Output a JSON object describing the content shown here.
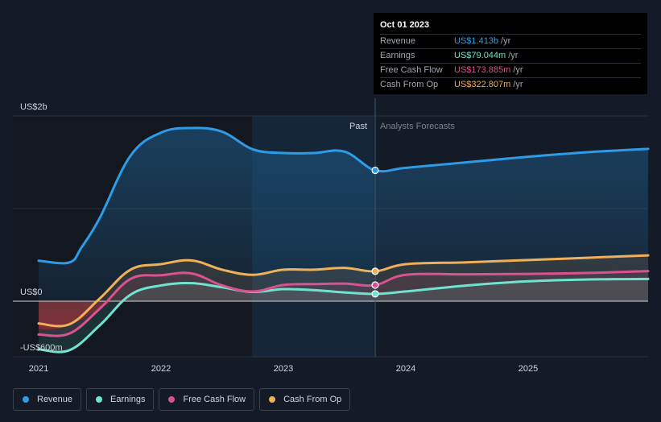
{
  "tooltip": {
    "date": "Oct 01 2023",
    "rows": [
      {
        "label": "Revenue",
        "value": "US$1.413b",
        "unit": "/yr",
        "color": "#2e9be6"
      },
      {
        "label": "Earnings",
        "value": "US$79.044m",
        "unit": "/yr",
        "color": "#6fe3cf"
      },
      {
        "label": "Free Cash Flow",
        "value": "US$173.885m",
        "unit": "/yr",
        "color": "#d9528f"
      },
      {
        "label": "Cash From Op",
        "value": "US$322.807m",
        "unit": "/yr",
        "color": "#f0b05a"
      }
    ]
  },
  "legend": [
    {
      "label": "Revenue",
      "color": "#2e9be6"
    },
    {
      "label": "Earnings",
      "color": "#6fe3cf"
    },
    {
      "label": "Free Cash Flow",
      "color": "#d9528f"
    },
    {
      "label": "Cash From Op",
      "color": "#f0b05a"
    }
  ],
  "chart_data": {
    "type": "area",
    "y_tick_labels": [
      "US$2b",
      "US$0",
      "-US$600m"
    ],
    "x_tick_labels": [
      "2021",
      "2022",
      "2023",
      "2024",
      "2025"
    ],
    "past_label": "Past",
    "forecast_label": "Analysts Forecasts",
    "ylim": [
      -600,
      2000
    ],
    "xlim": [
      2021.0,
      2025.98
    ],
    "divider_x": 2023.75,
    "series": [
      {
        "name": "Revenue",
        "color": "#2e9be6",
        "x": [
          2021.0,
          2021.25,
          2021.35,
          2021.5,
          2021.75,
          2022.0,
          2022.25,
          2022.5,
          2022.75,
          2023.0,
          2023.25,
          2023.5,
          2023.75,
          2024.0,
          2024.5,
          2025.0,
          2025.5,
          2025.98
        ],
        "y": [
          437,
          418,
          580,
          900,
          1570,
          1820,
          1870,
          1830,
          1640,
          1600,
          1600,
          1615,
          1413,
          1440,
          1500,
          1560,
          1610,
          1645
        ]
      },
      {
        "name": "Earnings",
        "color": "#6fe3cf",
        "x": [
          2021.0,
          2021.25,
          2021.5,
          2021.75,
          2022.0,
          2022.25,
          2022.5,
          2022.75,
          2023.0,
          2023.25,
          2023.5,
          2023.75,
          2024.0,
          2024.5,
          2025.0,
          2025.5,
          2025.98
        ],
        "y": [
          -520,
          -530,
          -260,
          70,
          170,
          195,
          150,
          100,
          130,
          120,
          95,
          79,
          105,
          170,
          215,
          235,
          240
        ]
      },
      {
        "name": "Free Cash Flow",
        "color": "#d9528f",
        "x": [
          2021.0,
          2021.25,
          2021.5,
          2021.75,
          2022.0,
          2022.25,
          2022.5,
          2022.75,
          2023.0,
          2023.25,
          2023.5,
          2023.75,
          2024.0,
          2024.5,
          2025.0,
          2025.5,
          2025.98
        ],
        "y": [
          -360,
          -350,
          -80,
          240,
          280,
          300,
          170,
          105,
          175,
          185,
          190,
          173.885,
          285,
          290,
          295,
          305,
          325
        ]
      },
      {
        "name": "Cash From Op",
        "color": "#f0b05a",
        "x": [
          2021.0,
          2021.25,
          2021.5,
          2021.75,
          2022.0,
          2022.25,
          2022.5,
          2022.75,
          2023.0,
          2023.25,
          2023.5,
          2023.75,
          2024.0,
          2024.5,
          2025.0,
          2025.5,
          2025.98
        ],
        "y": [
          -240,
          -250,
          30,
          340,
          400,
          440,
          340,
          285,
          340,
          340,
          360,
          322.807,
          400,
          420,
          445,
          470,
          495
        ]
      }
    ],
    "grid": true
  }
}
